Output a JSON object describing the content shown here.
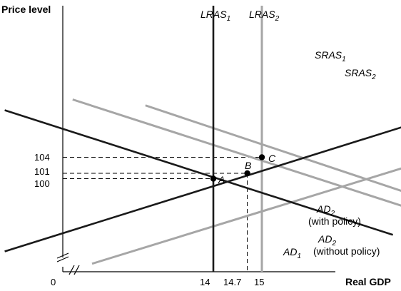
{
  "chart_data": {
    "type": "line",
    "title": "",
    "xlabel": "Real GDP",
    "ylabel": "Price level",
    "origin_label": "0",
    "x_ticks": [
      "14",
      "14.7",
      "15"
    ],
    "y_ticks": [
      "104",
      "101",
      "100"
    ],
    "colors": {
      "dark": "#1a1a1a",
      "light": "#a6a6a6"
    },
    "series": [
      {
        "id": "lras1",
        "name": "LRAS",
        "sub": "1",
        "tone": "dark",
        "kind": "vertical",
        "x": 14
      },
      {
        "id": "lras2",
        "name": "LRAS",
        "sub": "2",
        "tone": "light",
        "kind": "vertical",
        "x": 15
      },
      {
        "id": "sras1",
        "name": "SRAS",
        "sub": "1",
        "tone": "dark",
        "points": [
          [
            9.7,
            86.4
          ],
          [
            18.3,
            110.8
          ]
        ]
      },
      {
        "id": "sras2",
        "name": "SRAS",
        "sub": "2",
        "tone": "light",
        "points": [
          [
            11.5,
            84.1
          ],
          [
            19.8,
            107.3
          ]
        ]
      },
      {
        "id": "ad1",
        "name": "AD",
        "sub": "1",
        "tone": "dark",
        "note": "",
        "points": [
          [
            9.7,
            112.8
          ],
          [
            17.7,
            89.5
          ]
        ]
      },
      {
        "id": "ad2-without",
        "name": "AD",
        "sub": "2",
        "tone": "light",
        "note": "(without policy)",
        "points": [
          [
            11.1,
            114.8
          ],
          [
            19.6,
            89.9
          ]
        ]
      },
      {
        "id": "ad2-with",
        "name": "AD",
        "sub": "2",
        "tone": "light",
        "note": "(with policy)",
        "points": [
          [
            12.6,
            113.7
          ],
          [
            19.2,
            93.7
          ]
        ]
      }
    ],
    "equilibria": [
      {
        "label": "A",
        "x": 14,
        "y": 100
      },
      {
        "label": "B",
        "x": 14.7,
        "y": 101
      },
      {
        "label": "C",
        "x": 15,
        "y": 104
      }
    ]
  }
}
